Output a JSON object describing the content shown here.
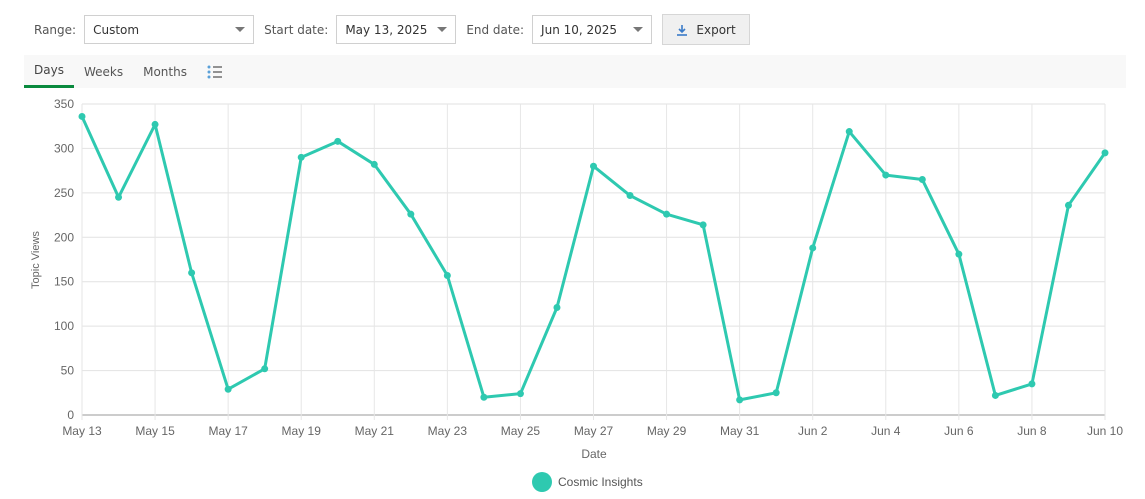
{
  "toolbar": {
    "range_label": "Range:",
    "range_value": "Custom",
    "start_label": "Start date:",
    "start_value": "May 13, 2025",
    "end_label": "End date:",
    "end_value": "Jun 10, 2025",
    "export_label": "Export"
  },
  "tabs": [
    {
      "label": "Days",
      "active": true
    },
    {
      "label": "Weeks",
      "active": false
    },
    {
      "label": "Months",
      "active": false
    }
  ],
  "colors": {
    "series": "#2ec9b0",
    "active_tab": "#0a8a3e",
    "export_icon": "#3a7bc8"
  },
  "chart_data": {
    "type": "line",
    "title": "",
    "xlabel": "Date",
    "ylabel": "Topic Views",
    "ylim": [
      0,
      350
    ],
    "yticks": [
      0,
      50,
      100,
      150,
      200,
      250,
      300,
      350
    ],
    "xtick_labels": [
      "May 13",
      "May 15",
      "May 17",
      "May 19",
      "May 21",
      "May 23",
      "May 25",
      "May 27",
      "May 29",
      "May 31",
      "Jun 2",
      "Jun 4",
      "Jun 6",
      "Jun 8",
      "Jun 10"
    ],
    "legend": [
      "Cosmic Insights"
    ],
    "legend_position": "bottom",
    "grid": true,
    "x": [
      "May 13",
      "May 14",
      "May 15",
      "May 16",
      "May 17",
      "May 18",
      "May 19",
      "May 20",
      "May 21",
      "May 22",
      "May 23",
      "May 24",
      "May 25",
      "May 26",
      "May 27",
      "May 28",
      "May 29",
      "May 30",
      "May 31",
      "Jun 1",
      "Jun 2",
      "Jun 3",
      "Jun 4",
      "Jun 5",
      "Jun 6",
      "Jun 7",
      "Jun 8",
      "Jun 9",
      "Jun 10"
    ],
    "series": [
      {
        "name": "Cosmic Insights",
        "values": [
          336,
          245,
          327,
          160,
          29,
          52,
          290,
          308,
          282,
          226,
          157,
          20,
          24,
          121,
          280,
          247,
          226,
          214,
          17,
          25,
          188,
          319,
          270,
          265,
          181,
          22,
          35,
          236,
          295
        ]
      }
    ]
  }
}
